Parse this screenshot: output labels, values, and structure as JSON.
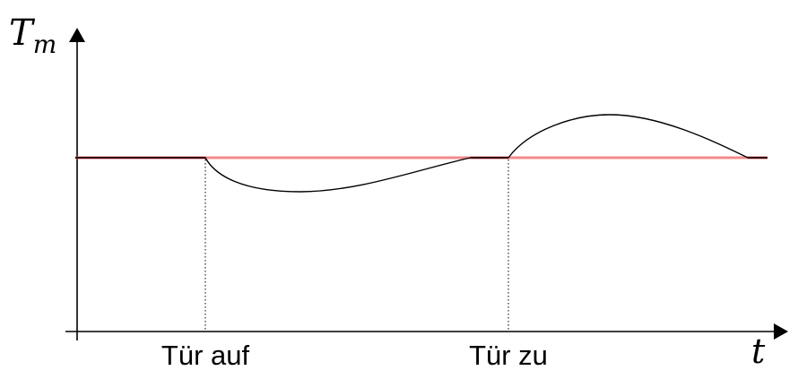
{
  "y_axis": {
    "label_base": "T",
    "label_subscript": "m"
  },
  "x_axis": {
    "label": "t"
  },
  "events": [
    {
      "label": "Tür auf"
    },
    {
      "label": "Tür zu"
    }
  ],
  "colors": {
    "setpoint_line": "#f28a8a",
    "setpoint_line_dark": "#c4161c",
    "curve": "#000000",
    "axes": "#000000"
  }
}
